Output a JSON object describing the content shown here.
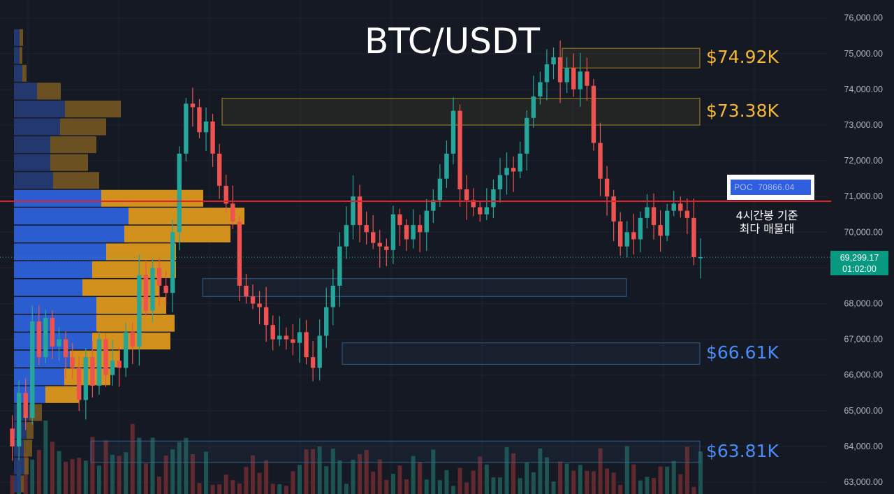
{
  "chart_data": {
    "type": "candlestick",
    "title": "BTC/USDT",
    "y_axis": {
      "ylim": [
        62800,
        76400
      ],
      "ticks": [
        "63,000.00",
        "64,000.00",
        "65,000.00",
        "66,000.00",
        "67,000.00",
        "68,000.00",
        "69,000.00",
        "70,000.00",
        "71,000.00",
        "72,000.00",
        "73,000.00",
        "74,000.00",
        "75,000.00",
        "76,000.00"
      ],
      "tick_values": [
        63000,
        64000,
        65000,
        66000,
        67000,
        68000,
        69000,
        70000,
        71000,
        72000,
        73000,
        74000,
        75000,
        76000
      ]
    },
    "grid": true,
    "price_path": [
      64500,
      64000,
      65500,
      64800,
      67500,
      66500,
      67600,
      66800,
      67000,
      66500,
      66200,
      65300,
      66500,
      65700,
      67000,
      66000,
      66400,
      66200,
      67200,
      66800,
      68800,
      67800,
      69000,
      68500,
      68300,
      70000,
      72200,
      73600,
      73500,
      72800,
      73100,
      72200,
      71300,
      70800,
      70300,
      68500,
      68200,
      68000,
      67900,
      67400,
      67000,
      67100,
      67000,
      66900,
      67200,
      66500,
      66200,
      67100,
      67900,
      68500,
      69600,
      70200,
      71000,
      70200,
      70000,
      69700,
      69600,
      69500,
      70500,
      70200,
      69800,
      70200,
      70000,
      70600,
      70900,
      71500,
      72200,
      73400,
      71200,
      70900,
      70700,
      70500,
      70700,
      71200,
      71600,
      71800,
      71700,
      72200,
      73200,
      73800,
      74200,
      74700,
      74900,
      74200,
      74600,
      74000,
      74500,
      74100,
      72500,
      71500,
      71000,
      70300,
      69600,
      70000,
      69800,
      70400,
      70700,
      70200,
      69900,
      70600,
      70800,
      70600,
      70400,
      69300,
      69300
    ],
    "volume_profile": [
      {
        "price": 62950,
        "buy": 10,
        "sell": 4
      },
      {
        "price": 63450,
        "buy": 15,
        "sell": 6
      },
      {
        "price": 63950,
        "buy": 14,
        "sell": 12
      },
      {
        "price": 64450,
        "buy": 18,
        "sell": 10
      },
      {
        "price": 64950,
        "buy": 22,
        "sell": 18
      },
      {
        "price": 65450,
        "buy": 45,
        "sell": 48
      },
      {
        "price": 65950,
        "buy": 72,
        "sell": 66
      },
      {
        "price": 66450,
        "buy": 80,
        "sell": 72
      },
      {
        "price": 66950,
        "buy": 112,
        "sell": 112
      },
      {
        "price": 67450,
        "buy": 118,
        "sell": 112
      },
      {
        "price": 67950,
        "buy": 118,
        "sell": 100
      },
      {
        "price": 68450,
        "buy": 98,
        "sell": 110
      },
      {
        "price": 68950,
        "buy": 112,
        "sell": 120
      },
      {
        "price": 69450,
        "buy": 132,
        "sell": 100
      },
      {
        "price": 69950,
        "buy": 158,
        "sell": 152
      },
      {
        "price": 70450,
        "buy": 164,
        "sell": 166
      },
      {
        "price": 70950,
        "buy": 125,
        "sell": 146
      },
      {
        "price": 71450,
        "buy": 56,
        "sell": 66
      },
      {
        "price": 71950,
        "buy": 52,
        "sell": 54
      },
      {
        "price": 72450,
        "buy": 52,
        "sell": 66
      },
      {
        "price": 72950,
        "buy": 66,
        "sell": 66
      },
      {
        "price": 73450,
        "buy": 73,
        "sell": 80
      },
      {
        "price": 73950,
        "buy": 33,
        "sell": 34
      },
      {
        "price": 74450,
        "buy": 12,
        "sell": 6
      },
      {
        "price": 74950,
        "buy": 8,
        "sell": 4
      },
      {
        "price": 75450,
        "buy": 8,
        "sell": 5
      }
    ],
    "zones": [
      {
        "low": 74600,
        "high": 75150,
        "color": "#c9a227",
        "label": "$74.92K",
        "label_color": "#f7b733"
      },
      {
        "low": 73000,
        "high": 73750,
        "color": "#c9a227",
        "label": "$73.38K",
        "label_color": "#f7b733"
      },
      {
        "low": 68200,
        "high": 68700,
        "color": "#3b6ea5",
        "label": "",
        "label_color": ""
      },
      {
        "low": 66300,
        "high": 66900,
        "color": "#3b6ea5",
        "label": "$66.61K",
        "label_color": "#4a8cf7"
      },
      {
        "low": 63550,
        "high": 64150,
        "color": "#3b6ea5",
        "label": "$63.81K",
        "label_color": "#4a8cf7"
      }
    ],
    "poc": {
      "price": 70866.04,
      "label": "POC",
      "value_text": "70866.04",
      "note_line1": "4시간봉 기준",
      "note_line2": "최다 매물대"
    },
    "last_price": {
      "value": 69299.17,
      "text": "69,299.17",
      "countdown": "01:02:00"
    }
  }
}
